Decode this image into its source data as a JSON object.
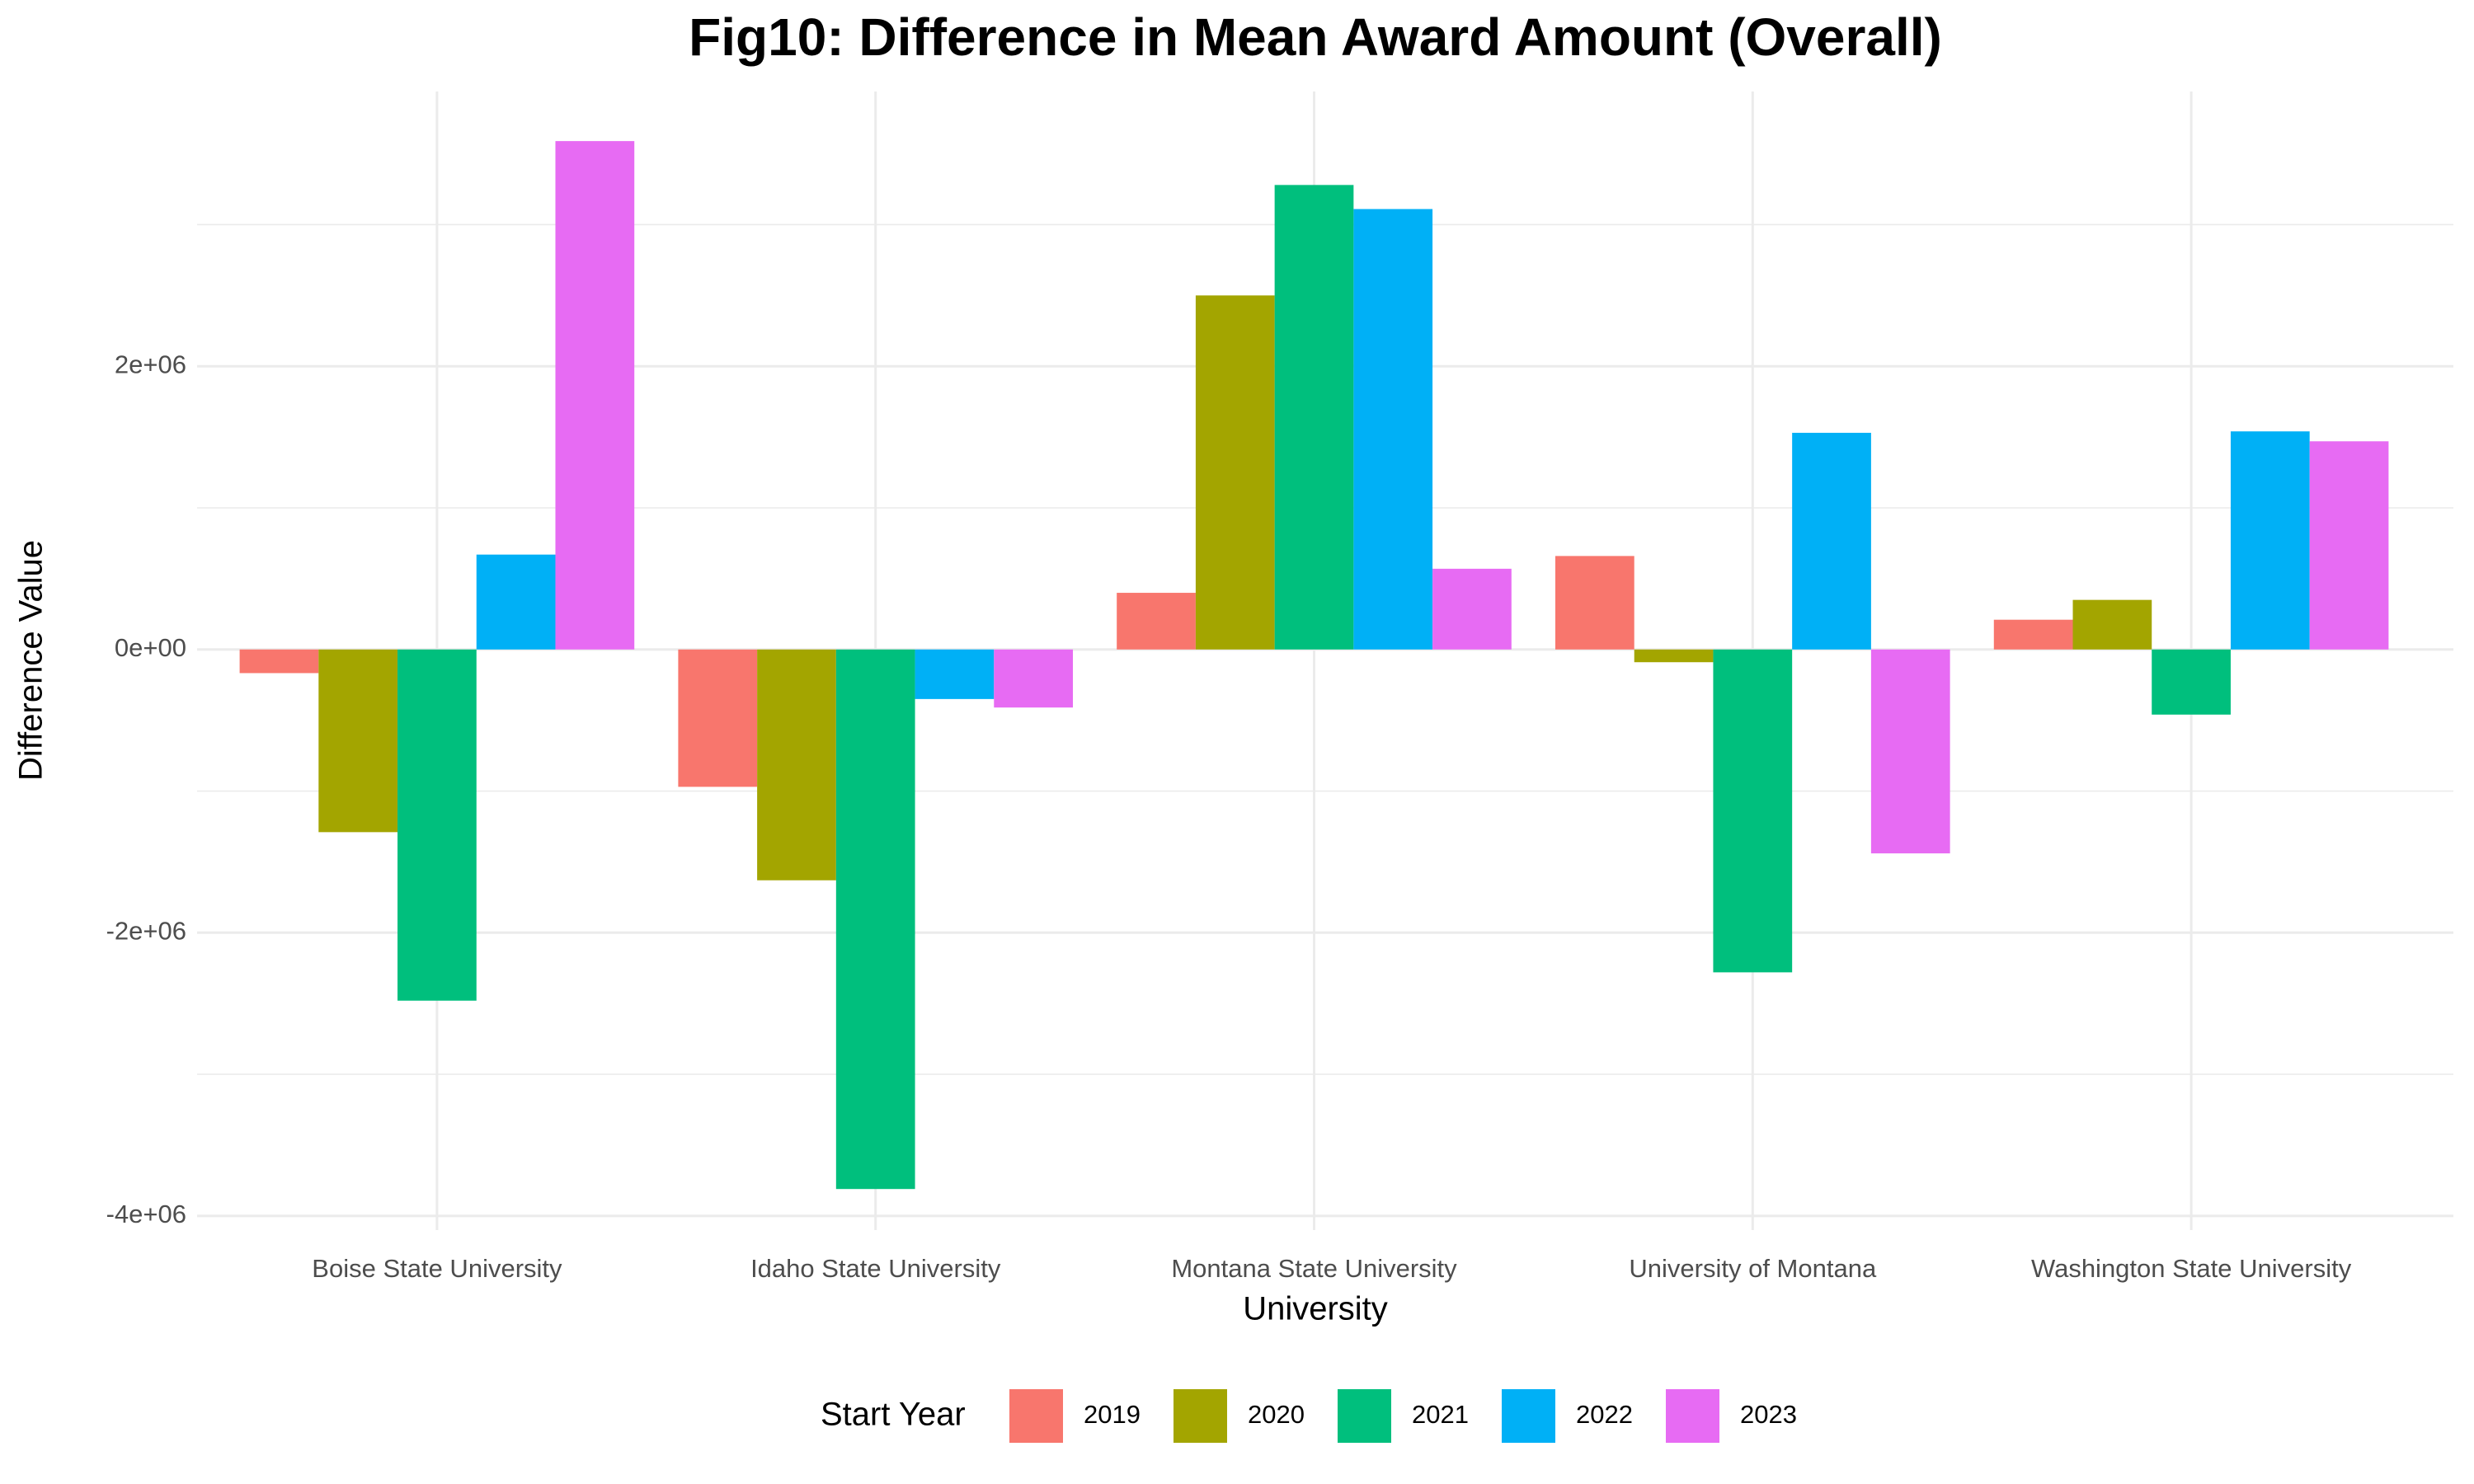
{
  "chart_data": {
    "type": "bar",
    "title": "Fig10: Difference in Mean Award Amount (Overall)",
    "x_label": "University",
    "y_label": "Difference Value",
    "legend_title": "Start Year",
    "categories": [
      "Boise State University",
      "Idaho State University",
      "Montana State University",
      "University of Montana",
      "Washington State University"
    ],
    "series": [
      {
        "name": "2019",
        "color": "#F8766D",
        "values": [
          -167000,
          -970000,
          400000,
          660000,
          210000
        ]
      },
      {
        "name": "2020",
        "color": "#A3A500",
        "values": [
          -1290000,
          -1630000,
          2500000,
          -90000,
          350000
        ]
      },
      {
        "name": "2021",
        "color": "#00BF7D",
        "values": [
          -2480000,
          -3810000,
          3280000,
          -2280000,
          -460000
        ]
      },
      {
        "name": "2022",
        "color": "#00B0F6",
        "values": [
          670000,
          -350000,
          3110000,
          1530000,
          1540000
        ]
      },
      {
        "name": "2023",
        "color": "#E76BF3",
        "values": [
          3590000,
          -410000,
          570000,
          -1440000,
          1470000
        ]
      }
    ],
    "ylim": [
      -4100000,
      3940000
    ],
    "yticks": [
      {
        "value": -4000000,
        "label": "-4e+06"
      },
      {
        "value": -2000000,
        "label": "-2e+06"
      },
      {
        "value": 0,
        "label": "0e+00"
      },
      {
        "value": 2000000,
        "label": "2e+06"
      }
    ],
    "grid": true
  }
}
